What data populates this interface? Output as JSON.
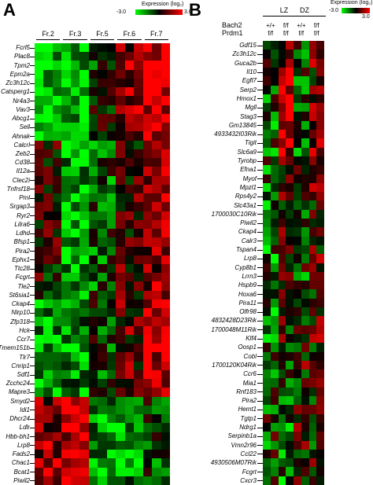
{
  "panel_a": {
    "letter": "A",
    "legend": {
      "title": "Expression (log₂)",
      "min_label": "-3.0",
      "max_label": "3.0"
    },
    "fractions": [
      "Fr.2",
      "Fr.3",
      "Fr.5",
      "Fr.6",
      "Fr.7"
    ],
    "genes": [
      "Fcrl5",
      "Plac8",
      "Tpm2",
      "Epm2a",
      "Zc3h12c",
      "Catsperg1",
      "Nr4a3",
      "Vav3",
      "Abcg1",
      "Sell",
      "Ahnak",
      "Calcrl",
      "Zeb2",
      "Cd38",
      "Il12a",
      "Clec2i",
      "Tnfrsf18",
      "Pml",
      "Srgap3",
      "Ryr2",
      "Lilra6",
      "Ldhd",
      "Bfsp1",
      "Pira2",
      "Ephx1",
      "Ttc28",
      "Fcgrt",
      "Tle2",
      "St6sia1",
      "Ckap4",
      "Nlrp10",
      "Zfp318",
      "Hck",
      "Ccr7",
      "Tmem151b",
      "Tlr7",
      "Cnrip1",
      "Sdf1",
      "Zcchc24",
      "Mapre3",
      "Smyd2",
      "Idi1",
      "Dhcr24",
      "Ldlr",
      "Hbb-bh1",
      "Lrp8",
      "Fads2",
      "Chac1",
      "Bcat1",
      "Piwil2"
    ]
  },
  "panel_b": {
    "letter": "B",
    "legend": {
      "title": "Expression (log₂)",
      "min_label": "-3.0",
      "max_label": "3.0"
    },
    "zones": [
      "LZ",
      "DZ"
    ],
    "row_labels": [
      "Bach2",
      "Prdm1"
    ],
    "genotypes": [
      {
        "bach2": "+/+",
        "prdm1": "f/f"
      },
      {
        "bach2": "f/f",
        "prdm1": "f/f"
      },
      {
        "bach2": "+/+",
        "prdm1": "f/f"
      },
      {
        "bach2": "f/f",
        "prdm1": "f/f"
      }
    ],
    "genes": [
      "Gdf15",
      "Zc3h12c",
      "Guca2b",
      "Il10",
      "Egfl7",
      "Serp2",
      "Hmox1",
      "Mgll",
      "Stag3",
      "Gm13845",
      "4933432I03Rik",
      "Tigit",
      "Slc6a9",
      "Tyrobp",
      "Efna1",
      "Myof",
      "Mpzl1",
      "Rps4y2",
      "Slc43a1",
      "1700030C10Rik",
      "Piwil2",
      "Ckap4",
      "Calr3",
      "Tspan4",
      "Lrp8",
      "Cyp8b1",
      "Lrrn3",
      "Hspb9",
      "Hoxa6",
      "Pira11",
      "Olfr98",
      "4832428D23Rik",
      "1700048M11Rik",
      "Klf4",
      "Oosp1",
      "Cobl",
      "1700120K04Rik",
      "Ccr6",
      "Mia1",
      "Rnf183",
      "Pira2",
      "Hemt1",
      "Tgtp1",
      "Ndrg1",
      "Serpinb1a",
      "Vmn2r96",
      "Ccl22",
      "4930506M07Rik",
      "Fcgrt",
      "Cxcr3"
    ]
  },
  "colors": {
    "low": "#00ff00",
    "mid": "#000000",
    "high": "#ff0000"
  }
}
